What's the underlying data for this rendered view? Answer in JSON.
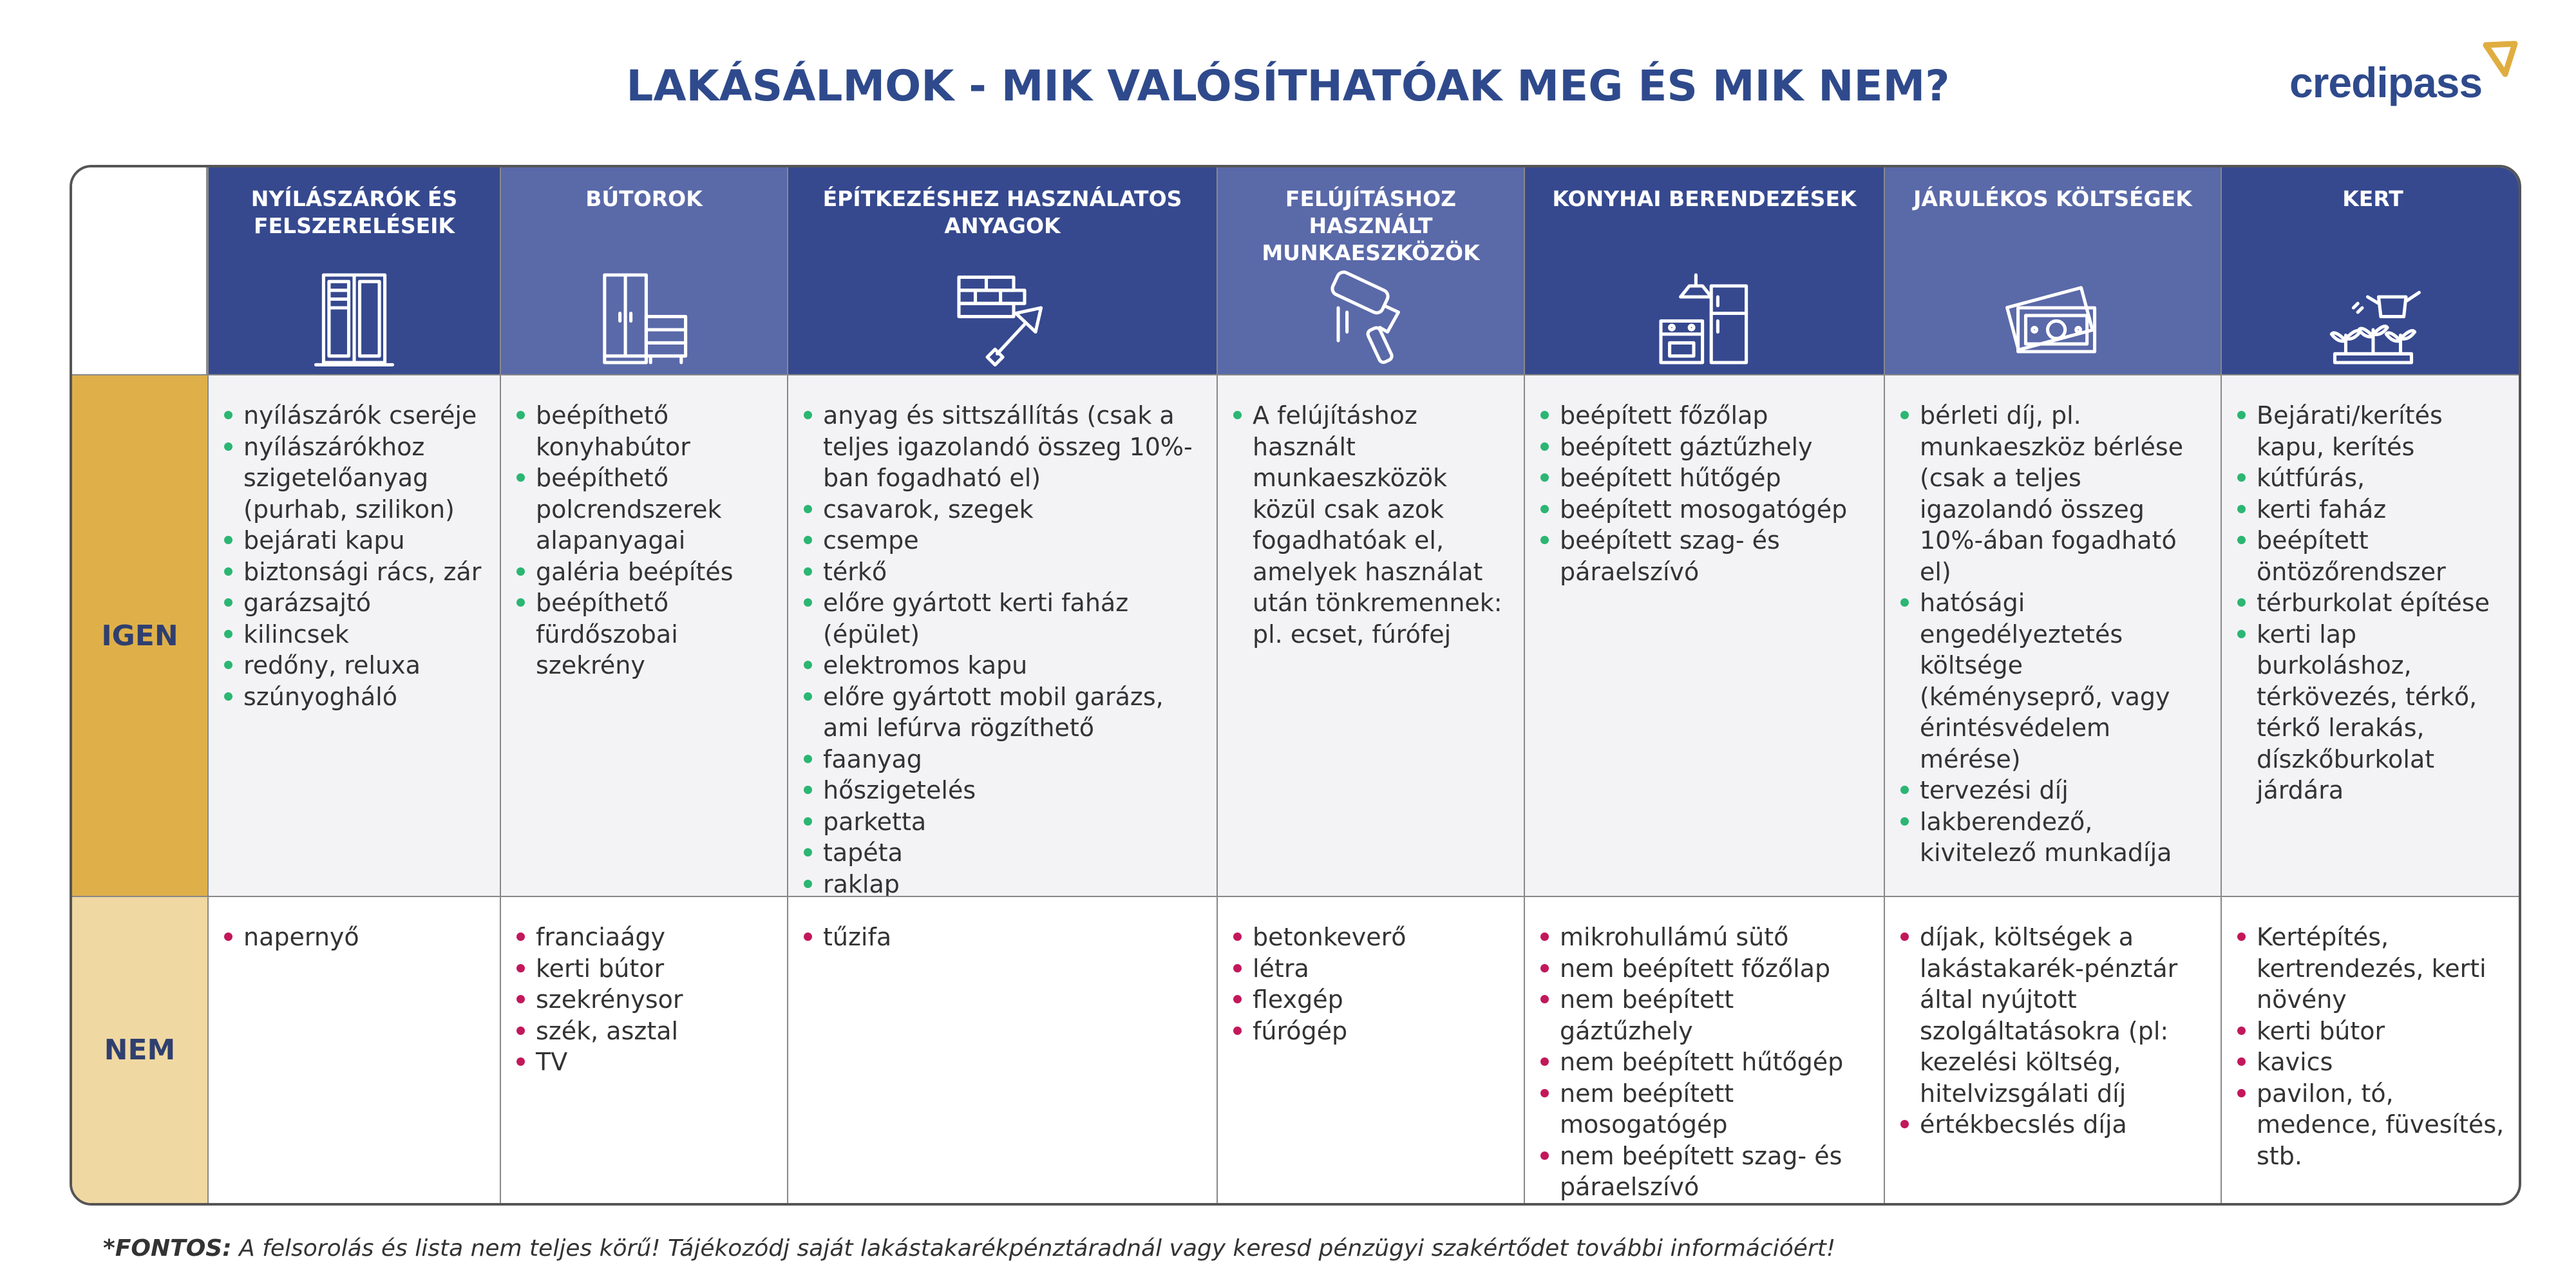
{
  "header": {
    "title": "LAKÁSÁLMOK - MIK VALÓSÍTHATÓAK MEG ÉS MIK NEM?",
    "logo": "credipass"
  },
  "table": {
    "rows": [
      "IGEN",
      "NEM"
    ],
    "columns": [
      {
        "title": "NYÍLÁSZÁRÓK ÉS FELSZERELÉSEIK",
        "yes": [
          "nyílászárók cseréje",
          "nyílászárókhoz szigetelőanyag (purhab, szilikon)",
          "bejárati kapu",
          "biztonsági rács, zár",
          "garázsajtó",
          "kilincsek",
          "redőny, reluxa",
          "szúnyogháló"
        ],
        "no": [
          "napernyő"
        ]
      },
      {
        "title": "BÚTOROK",
        "yes": [
          "beépíthető konyhabútor",
          "beépíthető polcrendszerek alapanyagai",
          "galéria beépítés",
          "beépíthető fürdőszobai szekrény"
        ],
        "no": [
          "franciaágy",
          "kerti bútor",
          "szekrénysor",
          "szék, asztal",
          "TV"
        ]
      },
      {
        "title": "ÉPÍTKEZÉSHEZ HASZNÁLATOS ANYAGOK",
        "yes": [
          "anyag és sittszállítás (csak a teljes igazolandó összeg 10%-ban fogadható el)",
          "csavarok, szegek",
          "csempe",
          "térkő",
          "előre gyártott kerti faház (épület)",
          "elektromos kapu",
          "előre gyártott mobil garázs, ami lefúrva rögzíthető",
          "faanyag",
          "hőszigetelés",
          "parketta",
          "tapéta",
          "raklap"
        ],
        "no": [
          "tűzifa"
        ]
      },
      {
        "title": "FELÚJÍTÁSHOZ HASZNÁLT MUNKAESZKÖZÖK",
        "yes": [
          "A felújításhoz használt munkaeszközök közül csak azok fogadhatóak el, amelyek használat után tönkremennek:\npl. ecset, fúrófej"
        ],
        "no": [
          "betonkeverő",
          "létra",
          "flexgép",
          "fúrógép"
        ]
      },
      {
        "title": "KONYHAI BERENDEZÉSEK",
        "yes": [
          "beépített főzőlap",
          "beépített gáztűzhely",
          "beépített hűtőgép",
          "beépített mosogatógép",
          "beépített szag- és páraelszívó"
        ],
        "no": [
          "mikrohullámú sütő",
          "nem beépített főzőlap",
          "nem beépített gáztűzhely",
          "nem beépített hűtőgép",
          "nem beépített mosogatógép",
          "nem beépített szag- és páraelszívó"
        ]
      },
      {
        "title": "JÁRULÉKOS KÖLTSÉGEK",
        "yes": [
          "bérleti díj, pl. munkaeszköz bérlése (csak a teljes igazolandó összeg 10%-ában fogadható el)",
          "hatósági engedélyeztetés költsége (kéményseprő, vagy érintésvédelem mérése)",
          "tervezési díj",
          "lakberendező, kivitelező munkadíja"
        ],
        "no": [
          "díjak, költségek a lakástakarék-pénztár által nyújtott szolgáltatásokra (pl: kezelési költség, hitelvizsgálati díj",
          "értékbecslés díja"
        ]
      },
      {
        "title": "KERT",
        "yes": [
          "Bejárati/kerítés kapu, kerítés",
          "kútfúrás,",
          "kerti faház",
          "beépített öntözőrendszer",
          "térburkolat építése",
          "kerti lap burkoláshoz, térkövezés, térkő, térkő lerakás, díszkőburkolat járdára"
        ],
        "no": [
          "Kertépítés, kertrendezés, kerti növény",
          "kerti bútor",
          "kavics",
          "pavilon, tó, medence, füvesítés, stb."
        ]
      }
    ]
  },
  "footnote": {
    "label": "*FONTOS:",
    "text": "A felsorolás és lista nem teljes körű! Tájékozódj saját lakástakarékpénztáradnál vagy keresd pénzügyi szakértődet további információért!"
  }
}
